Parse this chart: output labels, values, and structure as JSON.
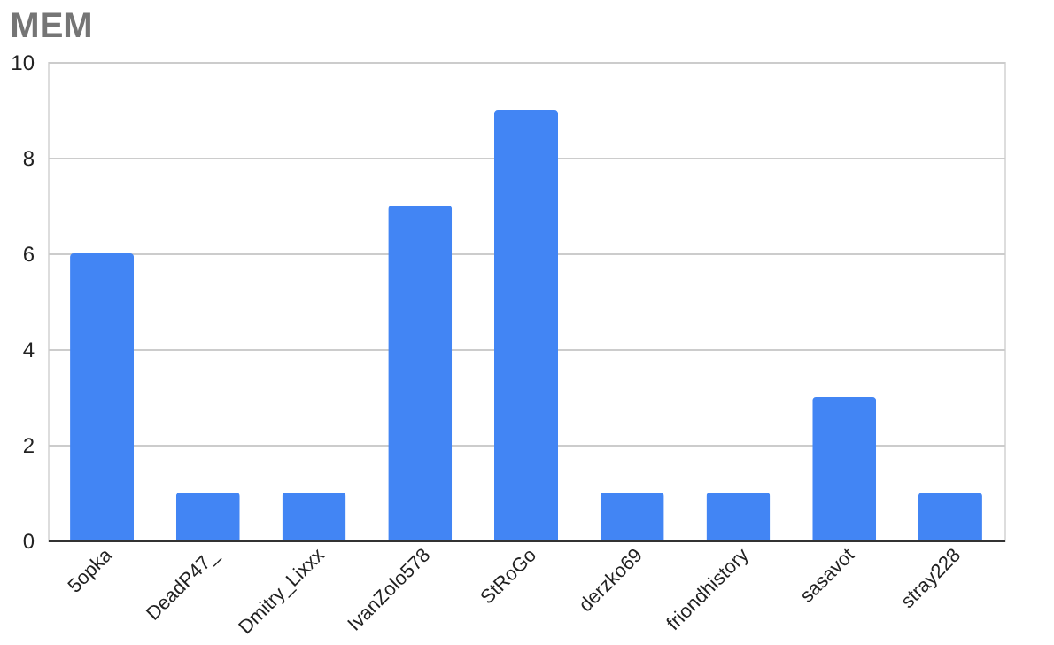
{
  "chart_data": {
    "type": "bar",
    "title": "MEM",
    "categories": [
      "5opka",
      "DeadP47_",
      "Dmitry_Lixxx",
      "IvanZolo578",
      "StRoGo",
      "derzko69",
      "friondhistory",
      "sasavot",
      "stray228"
    ],
    "values": [
      6,
      1,
      1,
      7,
      9,
      1,
      1,
      3,
      1
    ],
    "color": "#4285f4",
    "ylim": [
      0,
      10
    ],
    "yticks": [
      0,
      2,
      4,
      6,
      8,
      10
    ],
    "grid": "y"
  }
}
